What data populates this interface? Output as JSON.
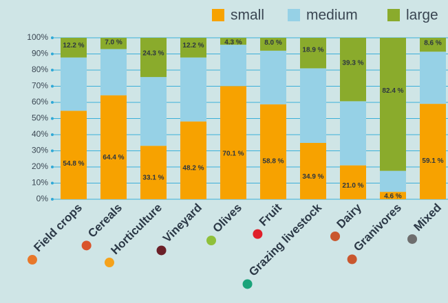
{
  "chart_data": {
    "type": "stacked_bar",
    "categories": [
      "Field crops",
      "Cereals",
      "Horticulture",
      "Vineyard",
      "Olives",
      "Fruit",
      "Grazing livestock",
      "Dairy",
      "Granivores",
      "Mixed"
    ],
    "category_colors": [
      "#e8782a",
      "#d9542b",
      "#f5a21b",
      "#6b2028",
      "#8fc03a",
      "#e01f2a",
      "#1aa37a",
      "#c9572e",
      "#c9572e",
      "#6e6e6e"
    ],
    "series": [
      {
        "name": "small",
        "color": "#f7a200",
        "values": [
          54.8,
          64.4,
          33.1,
          48.2,
          70.1,
          58.8,
          34.9,
          21.0,
          4.6,
          59.1
        ],
        "value_labels": [
          "54.8 %",
          "64.4 %",
          "33.1 %",
          "48.2 %",
          "70.1 %",
          "58.8 %",
          "34.9 %",
          "21.0 %",
          "4.6 %",
          "59.1 %"
        ]
      },
      {
        "name": "medium",
        "color": "#96d1e6",
        "values": [
          33.0,
          28.6,
          42.6,
          39.6,
          25.6,
          33.2,
          46.2,
          39.7,
          13.0,
          32.3
        ]
      },
      {
        "name": "large",
        "color": "#8aab2c",
        "values": [
          12.2,
          7.0,
          24.3,
          12.2,
          4.3,
          8.0,
          18.9,
          39.3,
          82.4,
          8.6
        ],
        "value_labels": [
          "12.2 %",
          "7.0 %",
          "24.3 %",
          "12.2 %",
          "4.3 %",
          "8.0 %",
          "18.9 %",
          "39.3 %",
          "82.4 %",
          "8.6 %"
        ]
      }
    ],
    "ylim": [
      0,
      100
    ],
    "yticks": [
      {
        "value": 0,
        "label": "0%"
      },
      {
        "value": 10,
        "label": "10%"
      },
      {
        "value": 20,
        "label": "20%"
      },
      {
        "value": 30,
        "label": "30%"
      },
      {
        "value": 40,
        "label": "40%"
      },
      {
        "value": 50,
        "label": "50%"
      },
      {
        "value": 60,
        "label": "60%"
      },
      {
        "value": 70,
        "label": "70%"
      },
      {
        "value": 80,
        "label": "80%"
      },
      {
        "value": 90,
        "label": "90%"
      },
      {
        "value": 100,
        "label": "100%"
      }
    ],
    "grid": true
  }
}
